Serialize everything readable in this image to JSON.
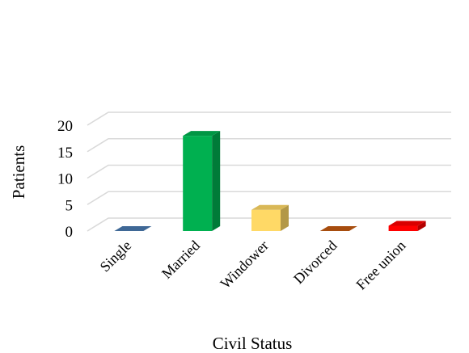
{
  "chart_data": {
    "type": "bar",
    "style": "3d-column",
    "categories": [
      "Single",
      "Married",
      "Windower",
      "Divorced",
      "Free union"
    ],
    "values": [
      0,
      18,
      4,
      0,
      1
    ],
    "colors": [
      "#4a7ab0",
      "#00b050",
      "#ffd966",
      "#c55a11",
      "#ff0000"
    ],
    "xlabel": "Civil Status",
    "ylabel": "Patients",
    "ylim": [
      0,
      20
    ],
    "yticks": [
      "0",
      "5",
      "10",
      "15",
      "20"
    ],
    "grid": true,
    "legend": "none"
  }
}
